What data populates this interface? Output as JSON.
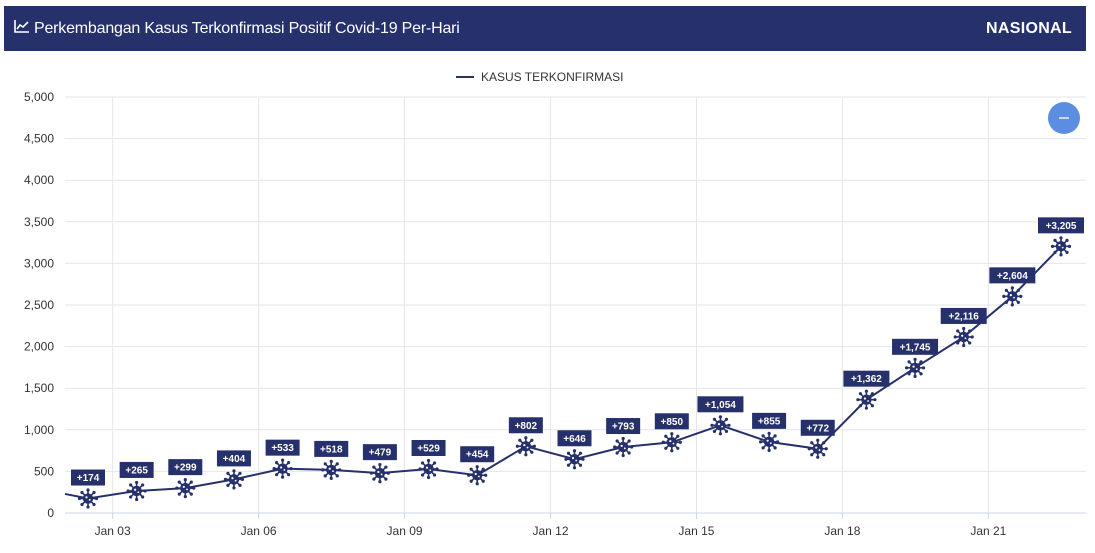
{
  "header": {
    "title": "Perkembangan Kasus Terkonfirmasi Positif Covid-19 Per-Hari",
    "scope": "NASIONAL",
    "chart_icon": "line-chart-icon"
  },
  "controls": {
    "zoom_icon": "minus-icon"
  },
  "colors": {
    "header_bg": "#26306b",
    "series": "#26306b",
    "grid": "#e6e6e6",
    "zoom_button": "#5b8de0"
  },
  "chart_data": {
    "type": "line",
    "legend": [
      "KASUS TERKONFIRMASI"
    ],
    "legend_position": "top-center",
    "grid": true,
    "x_ticks": [
      "Jan 03",
      "Jan 06",
      "Jan 09",
      "Jan 12",
      "Jan 15",
      "Jan 18",
      "Jan 21"
    ],
    "y_ticks": [
      "0",
      "500",
      "1,000",
      "1,500",
      "2,000",
      "2,500",
      "3,000",
      "3,500",
      "4,000",
      "4,500",
      "5,000"
    ],
    "ylim": [
      0,
      5000
    ],
    "series": [
      {
        "name": "KASUS TERKONFIRMASI",
        "x": [
          "Jan 02",
          "Jan 03",
          "Jan 04",
          "Jan 05",
          "Jan 06",
          "Jan 07",
          "Jan 08",
          "Jan 09",
          "Jan 10",
          "Jan 11",
          "Jan 12",
          "Jan 13",
          "Jan 14",
          "Jan 15",
          "Jan 16",
          "Jan 17",
          "Jan 18",
          "Jan 19",
          "Jan 20",
          "Jan 21",
          "Jan 22"
        ],
        "values": [
          174,
          265,
          299,
          404,
          533,
          518,
          479,
          529,
          454,
          802,
          646,
          793,
          850,
          1054,
          855,
          772,
          1362,
          1745,
          2116,
          2604,
          3205
        ],
        "labels": [
          "+174",
          "+265",
          "+299",
          "+404",
          "+533",
          "+518",
          "+479",
          "+529",
          "+454",
          "+802",
          "+646",
          "+793",
          "+850",
          "+1,054",
          "+855",
          "+772",
          "+1,362",
          "+1,745",
          "+2,116",
          "+2,604",
          "+3,205"
        ]
      }
    ]
  }
}
